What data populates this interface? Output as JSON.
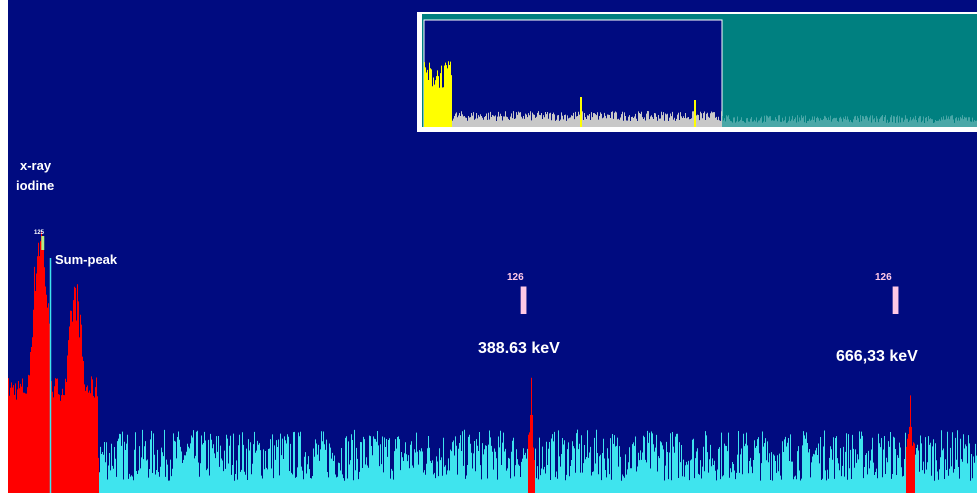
{
  "colors": {
    "background": "#000b80",
    "roi_fill": "#ff0000",
    "spectrum_line": "#3fe4ee",
    "overview_bg": "#000b80",
    "overview_roi": "#ffff00",
    "overview_spectrum": "#c8c8c8",
    "overview_outside": "#008080",
    "overview_frame": "#ffffff"
  },
  "annotations": {
    "xray_line1": "x-ray",
    "xray_line2": "iodine",
    "sum_peak": "Sum-peak",
    "small_isotope_mass": "125",
    "small_isotope_symbol": "I",
    "peak1_mass": "126",
    "peak1_symbol": "I",
    "peak1_energy": "388.63 keV",
    "peak2_mass": "126",
    "peak2_symbol": "I",
    "peak2_energy": "666,33 keV"
  },
  "chart_data": {
    "type": "bar",
    "title": "",
    "xlabel": "",
    "ylabel": "",
    "grid": false,
    "legend": "none",
    "regions_of_interest": [
      {
        "name": "x-ray iodine",
        "channel_start": 0,
        "channel_end": 90
      },
      {
        "name": "388.63 keV",
        "channel_start": 520,
        "channel_end": 526
      },
      {
        "name": "666,33 keV",
        "channel_start": 898,
        "channel_end": 906
      }
    ],
    "peaks": [
      {
        "label": "x-ray iodine",
        "channel": 32,
        "counts": 280
      },
      {
        "label": "Sum-peak",
        "channel": 67,
        "counts": 215
      },
      {
        "label": "388.63 keV",
        "channel": 523,
        "counts": 118
      },
      {
        "label": "666,33 keV",
        "channel": 902,
        "counts": 100
      }
    ],
    "background_counts_typical": 50,
    "ylim": [
      0,
      300
    ]
  }
}
